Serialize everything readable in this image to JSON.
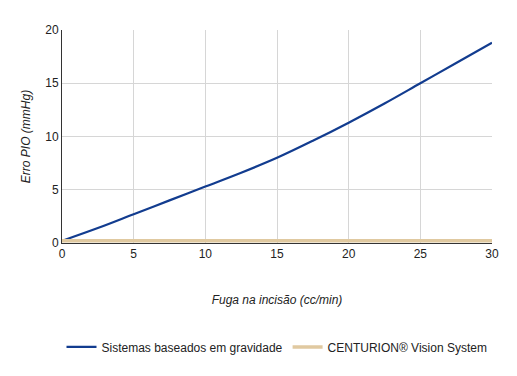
{
  "chart_data": {
    "type": "line",
    "x_label": "Fuga na incisão (cc/min)",
    "y_label": "Erro PIO (mmHg)",
    "x": [
      0,
      2.5,
      5,
      7.5,
      10,
      12.5,
      15,
      17.5,
      20,
      22.5,
      25,
      27.5,
      30
    ],
    "series": [
      {
        "name": "Sistemas baseados em gravidade",
        "color": "#123c8f",
        "values": [
          0.2,
          1.4,
          2.7,
          4.0,
          5.3,
          6.6,
          8.0,
          9.6,
          11.3,
          13.1,
          15.0,
          16.9,
          18.8
        ]
      },
      {
        "name": "CENTURION® Vision System",
        "color": "#e0c9a0",
        "values": [
          0.2,
          0.2,
          0.2,
          0.2,
          0.2,
          0.2,
          0.2,
          0.2,
          0.2,
          0.2,
          0.2,
          0.2,
          0.2
        ]
      }
    ],
    "xlim": [
      0,
      30
    ],
    "ylim": [
      0,
      20
    ],
    "xticks": [
      0,
      5,
      10,
      15,
      20,
      25,
      30
    ],
    "yticks": [
      0,
      5,
      10,
      15,
      20
    ],
    "grid": true,
    "legend": "bottom"
  }
}
